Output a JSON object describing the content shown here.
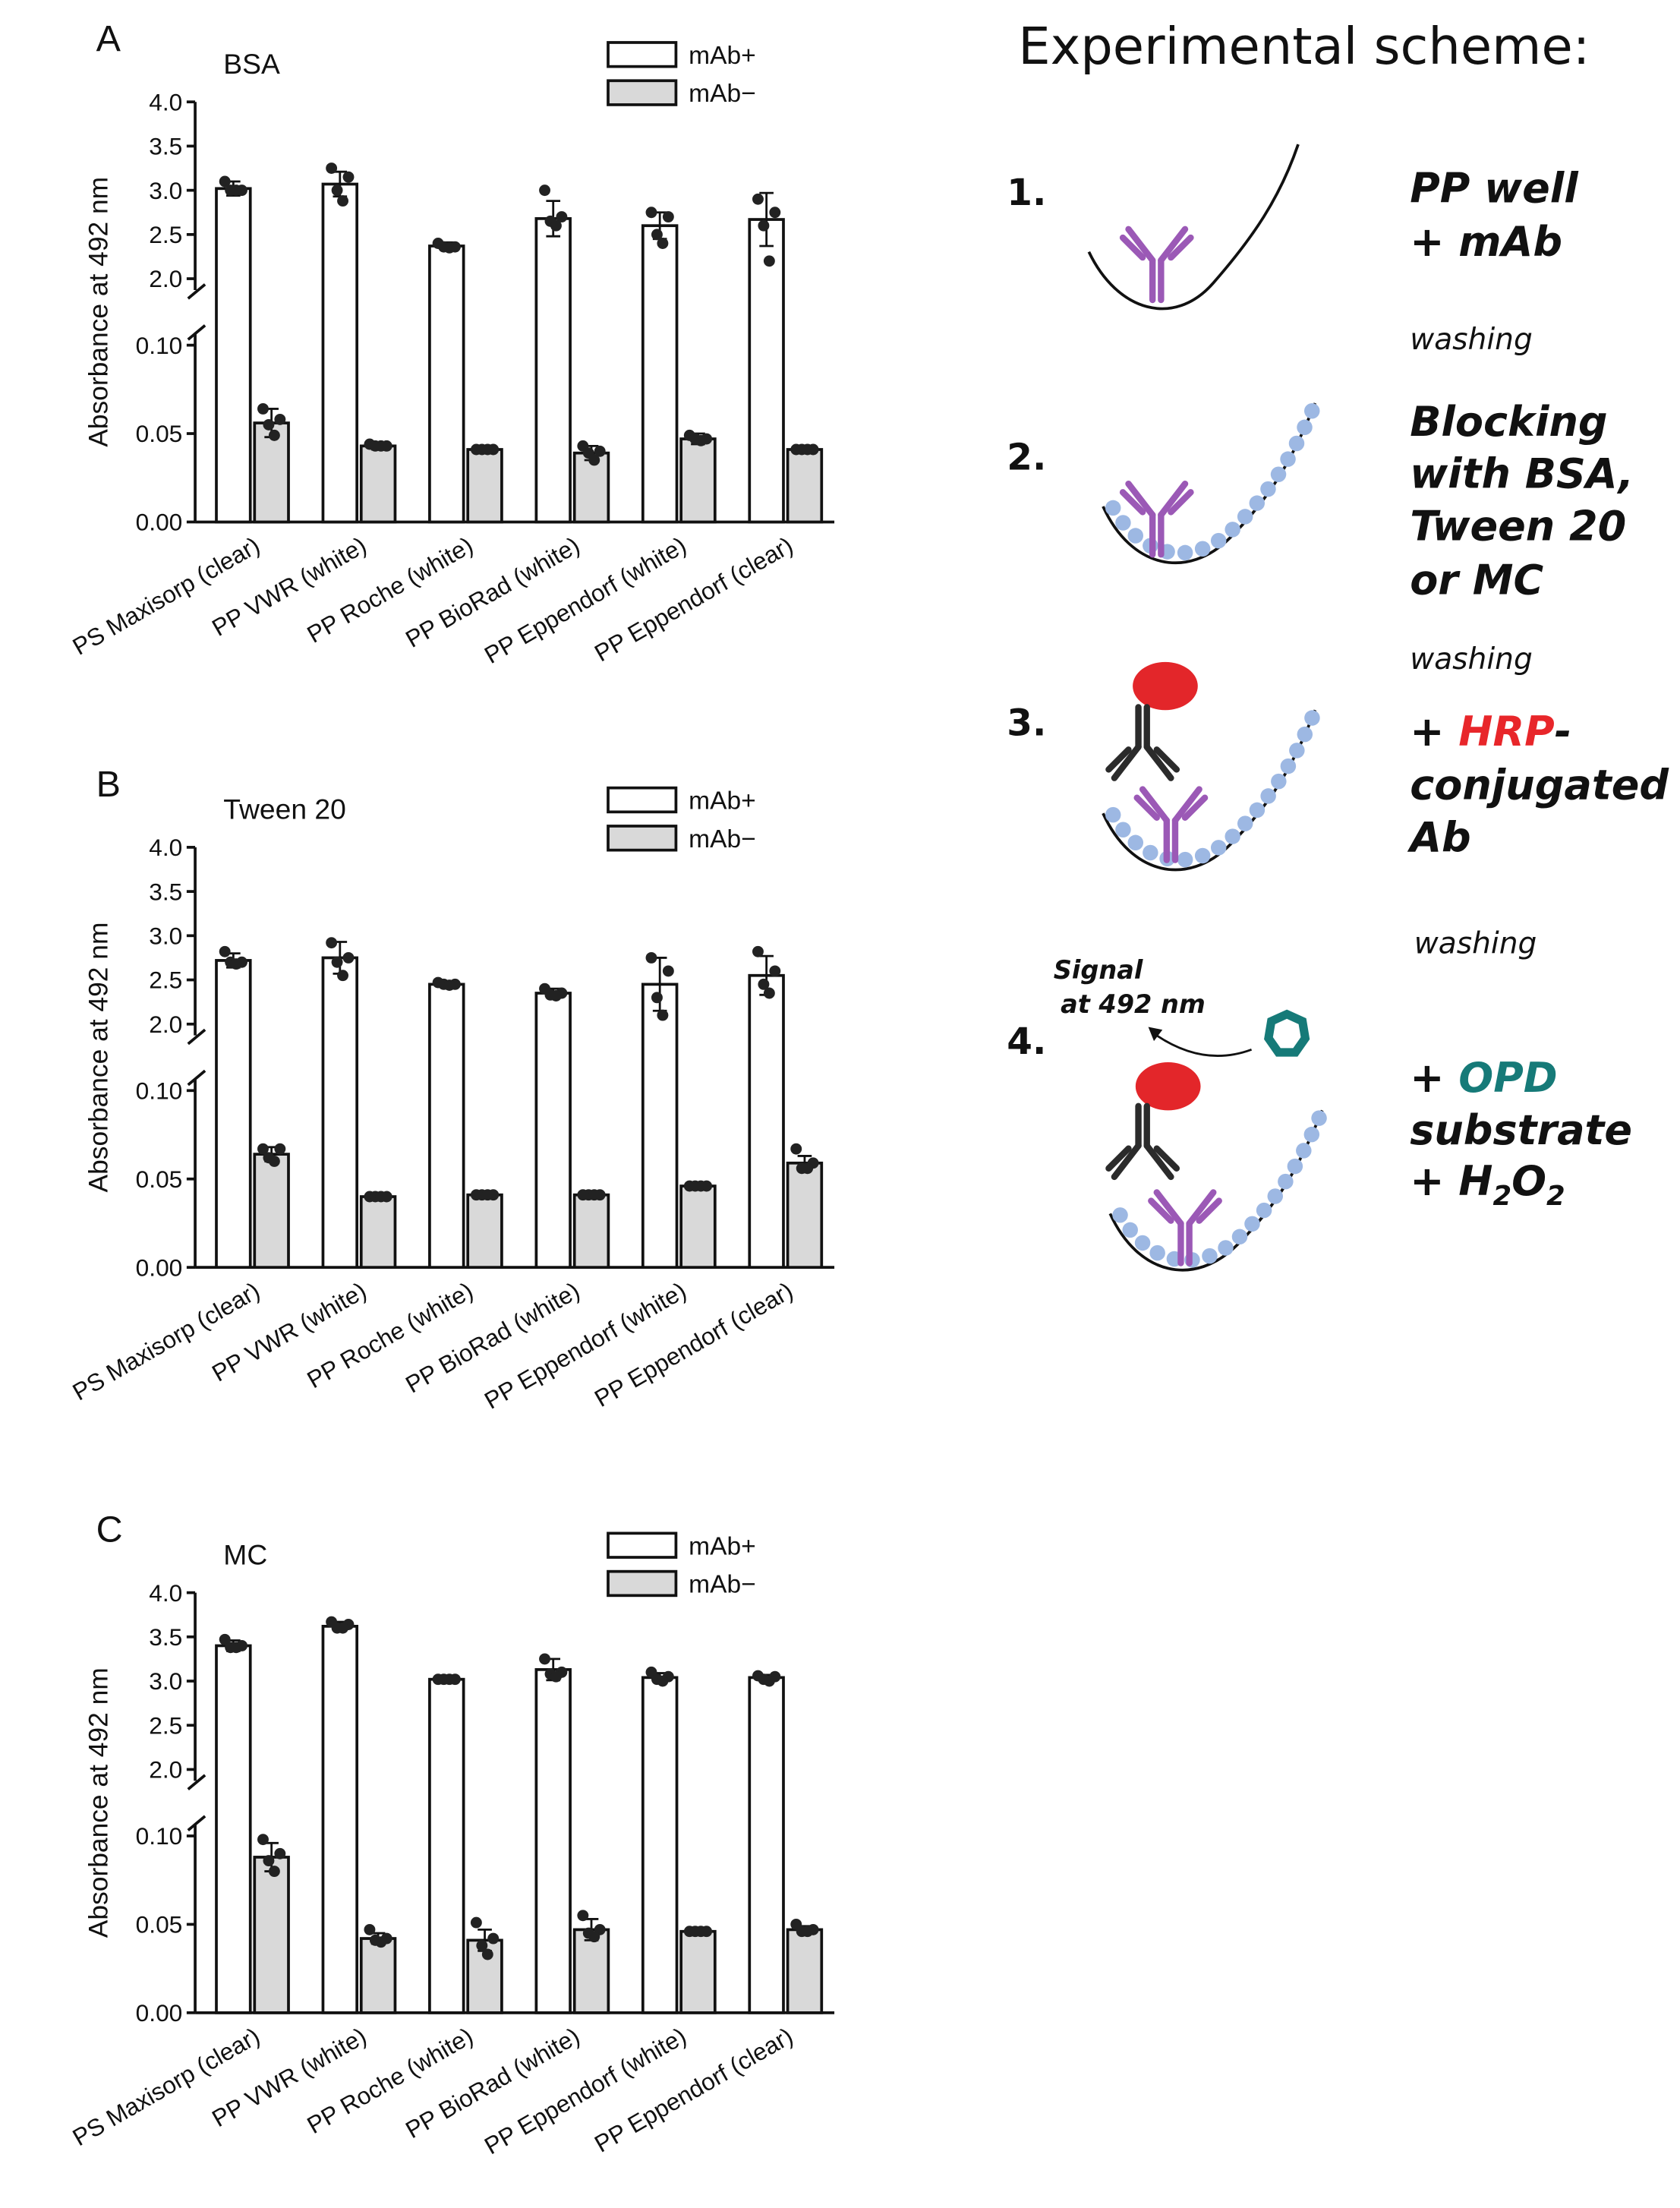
{
  "chart_data": [
    {
      "type": "bar",
      "panel": "A",
      "title": "BSA",
      "y_label": "Absorbance at 492 nm",
      "categories": [
        "PS Maxisorp (clear)",
        "PP VWR (white)",
        "PP Roche (white)",
        "PP BioRad (white)",
        "PP Eppendorf (white)",
        "PP Eppendorf (clear)"
      ],
      "y2lim": [
        2.0,
        4.0
      ],
      "y2ticks": [
        {
          "value": 2.0,
          "label": "2.0"
        },
        {
          "value": 2.5,
          "label": "2.5"
        },
        {
          "value": 3.0,
          "label": "3.0"
        },
        {
          "value": 3.5,
          "label": "3.5"
        },
        {
          "value": 4.0,
          "label": "4.0"
        }
      ],
      "ylim": [
        0,
        0.1
      ],
      "yticks": [
        {
          "value": 0,
          "label": "0.00"
        },
        {
          "value": 0.05,
          "label": "0.05"
        },
        {
          "value": 0.1,
          "label": "0.10"
        }
      ],
      "legend": "top-right",
      "series": [
        {
          "name": "mAb+",
          "color": "#ffffff",
          "axis": "y2",
          "values": [
            3.02,
            3.07,
            2.37,
            2.68,
            2.6,
            2.67
          ],
          "errors": [
            0.08,
            0.14,
            0.04,
            0.2,
            0.15,
            0.3
          ],
          "points": [
            [
              3.1,
              3.0,
              3.0,
              3.0
            ],
            [
              3.25,
              3.15,
              3.0,
              2.88
            ],
            [
              2.4,
              2.36,
              2.36,
              2.35
            ],
            [
              3.0,
              2.7,
              2.65,
              2.6
            ],
            [
              2.75,
              2.7,
              2.5,
              2.4
            ],
            [
              2.9,
              2.75,
              2.6,
              2.2
            ]
          ]
        },
        {
          "name": "mAb−",
          "color": "#d9d9d9",
          "values": [
            0.056,
            0.043,
            0.041,
            0.039,
            0.047,
            0.041
          ],
          "errors": [
            0.008,
            0.002,
            0.001,
            0.004,
            0.003,
            0.001
          ],
          "points": [
            [
              0.064,
              0.058,
              0.055,
              0.049
            ],
            [
              0.044,
              0.043,
              0.043,
              0.043
            ],
            [
              0.041,
              0.041,
              0.041,
              0.041
            ],
            [
              0.043,
              0.04,
              0.039,
              0.035
            ],
            [
              0.049,
              0.047,
              0.047,
              0.046
            ],
            [
              0.041,
              0.041,
              0.041,
              0.041
            ]
          ]
        }
      ]
    },
    {
      "type": "bar",
      "panel": "B",
      "title": "Tween 20",
      "y_label": "Absorbance at 492 nm",
      "categories": [
        "PS Maxisorp (clear)",
        "PP VWR (white)",
        "PP Roche (white)",
        "PP BioRad (white)",
        "PP Eppendorf (white)",
        "PP Eppendorf (clear)"
      ],
      "y2lim": [
        2.0,
        4.0
      ],
      "y2ticks": [
        {
          "value": 2.0,
          "label": "2.0"
        },
        {
          "value": 2.5,
          "label": "2.5"
        },
        {
          "value": 3.0,
          "label": "3.0"
        },
        {
          "value": 3.5,
          "label": "3.5"
        },
        {
          "value": 4.0,
          "label": "4.0"
        }
      ],
      "ylim": [
        0,
        0.1
      ],
      "yticks": [
        {
          "value": 0,
          "label": "0.00"
        },
        {
          "value": 0.05,
          "label": "0.05"
        },
        {
          "value": 0.1,
          "label": "0.10"
        }
      ],
      "legend": "top-right",
      "series": [
        {
          "name": "mAb+",
          "color": "#ffffff",
          "axis": "y2",
          "values": [
            2.72,
            2.75,
            2.45,
            2.35,
            2.45,
            2.55
          ],
          "errors": [
            0.08,
            0.18,
            0.03,
            0.05,
            0.3,
            0.22
          ],
          "points": [
            [
              2.82,
              2.7,
              2.7,
              2.68
            ],
            [
              2.92,
              2.75,
              2.7,
              2.55
            ],
            [
              2.47,
              2.45,
              2.45,
              2.44
            ],
            [
              2.4,
              2.35,
              2.33,
              2.32
            ],
            [
              2.75,
              2.6,
              2.3,
              2.1
            ],
            [
              2.82,
              2.6,
              2.45,
              2.35
            ]
          ]
        },
        {
          "name": "mAb−",
          "color": "#d9d9d9",
          "values": [
            0.064,
            0.04,
            0.041,
            0.041,
            0.046,
            0.059
          ],
          "errors": [
            0.004,
            0.0005,
            0.0005,
            0.0005,
            0.0005,
            0.004
          ],
          "points": [
            [
              0.067,
              0.067,
              0.062,
              0.06
            ],
            [
              0.04,
              0.04,
              0.04,
              0.04
            ],
            [
              0.041,
              0.041,
              0.041,
              0.041
            ],
            [
              0.041,
              0.041,
              0.041,
              0.041
            ],
            [
              0.046,
              0.046,
              0.046,
              0.046
            ],
            [
              0.067,
              0.059,
              0.056,
              0.056
            ]
          ]
        }
      ]
    },
    {
      "type": "bar",
      "panel": "C",
      "title": "MC",
      "y_label": "Absorbance at 492 nm",
      "categories": [
        "PS Maxisorp (clear)",
        "PP VWR (white)",
        "PP Roche (white)",
        "PP BioRad (white)",
        "PP Eppendorf (white)",
        "PP Eppendorf (clear)"
      ],
      "y2lim": [
        2.0,
        4.0
      ],
      "y2ticks": [
        {
          "value": 2.0,
          "label": "2.0"
        },
        {
          "value": 2.5,
          "label": "2.5"
        },
        {
          "value": 3.0,
          "label": "3.0"
        },
        {
          "value": 3.5,
          "label": "3.5"
        },
        {
          "value": 4.0,
          "label": "4.0"
        }
      ],
      "ylim": [
        0,
        0.1
      ],
      "yticks": [
        {
          "value": 0,
          "label": "0.00"
        },
        {
          "value": 0.05,
          "label": "0.05"
        },
        {
          "value": 0.1,
          "label": "0.10"
        }
      ],
      "legend": "top-right",
      "series": [
        {
          "name": "mAb+",
          "color": "#ffffff",
          "axis": "y2",
          "values": [
            3.4,
            3.62,
            3.02,
            3.13,
            3.04,
            3.04
          ],
          "errors": [
            0.06,
            0.05,
            0.01,
            0.12,
            0.05,
            0.03
          ],
          "points": [
            [
              3.47,
              3.4,
              3.38,
              3.38
            ],
            [
              3.67,
              3.64,
              3.6,
              3.6
            ],
            [
              3.02,
              3.02,
              3.02,
              3.02
            ],
            [
              3.25,
              3.1,
              3.08,
              3.05
            ],
            [
              3.1,
              3.05,
              3.02,
              3.0
            ],
            [
              3.06,
              3.05,
              3.02,
              3.0
            ]
          ]
        },
        {
          "name": "mAb−",
          "color": "#d9d9d9",
          "values": [
            0.088,
            0.042,
            0.041,
            0.047,
            0.046,
            0.047
          ],
          "errors": [
            0.008,
            0.003,
            0.006,
            0.006,
            0.0005,
            0.002
          ],
          "points": [
            [
              0.098,
              0.09,
              0.086,
              0.08
            ],
            [
              0.047,
              0.042,
              0.041,
              0.04
            ],
            [
              0.051,
              0.042,
              0.038,
              0.033
            ],
            [
              0.055,
              0.047,
              0.045,
              0.043
            ],
            [
              0.046,
              0.046,
              0.046,
              0.046
            ],
            [
              0.05,
              0.047,
              0.046,
              0.046
            ]
          ]
        }
      ]
    }
  ],
  "scheme": {
    "title": "Experimental scheme:",
    "steps": [
      {
        "number": "1.",
        "lines": [
          [
            {
              "text": "PP well"
            }
          ],
          [
            {
              "text": "+ mAb"
            }
          ]
        ]
      },
      {
        "number": "2.",
        "lines": [
          [
            {
              "text": "Blocking"
            }
          ],
          [
            {
              "text": "with BSA,"
            }
          ],
          [
            {
              "text": "Tween 20"
            }
          ],
          [
            {
              "text": "or MC"
            }
          ]
        ]
      },
      {
        "number": "3.",
        "lines": [
          [
            {
              "text": "+ "
            },
            {
              "text": "HRP",
              "color": "#e8262a"
            },
            {
              "text": "-"
            }
          ],
          [
            {
              "text": "conjugated"
            }
          ],
          [
            {
              "text": "Ab"
            }
          ]
        ]
      },
      {
        "number": "4.",
        "lines": [
          [
            {
              "text": "+ "
            },
            {
              "text": "OPD",
              "color": "#167a78"
            }
          ],
          [
            {
              "text": "substrate"
            }
          ],
          [
            {
              "text": "+ H"
            },
            {
              "text": "2",
              "sub": true
            },
            {
              "text": "O"
            },
            {
              "text": "2",
              "sub": true
            }
          ]
        ]
      }
    ],
    "washing": [
      "washing",
      "washing",
      "washing"
    ],
    "signal": [
      "Signal",
      "at 492 nm"
    ]
  }
}
